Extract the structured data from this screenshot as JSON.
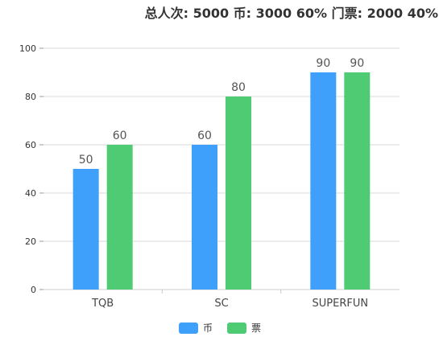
{
  "chart_data": {
    "type": "bar",
    "title": "总人次: 5000 币: 3000 60% 门票: 2000 40%",
    "categories": [
      "TQB",
      "SC",
      "SUPERFUN"
    ],
    "series": [
      {
        "name": "币",
        "values": [
          50,
          60,
          90
        ],
        "color": "#3fa0fb"
      },
      {
        "name": "票",
        "values": [
          60,
          80,
          90
        ],
        "color": "#4ecb73"
      }
    ],
    "ylim": [
      0,
      100
    ],
    "yticks": [
      0,
      20,
      40,
      60,
      80,
      100
    ],
    "grid": true,
    "legend_position": "bottom-center",
    "show_data_labels": true
  }
}
